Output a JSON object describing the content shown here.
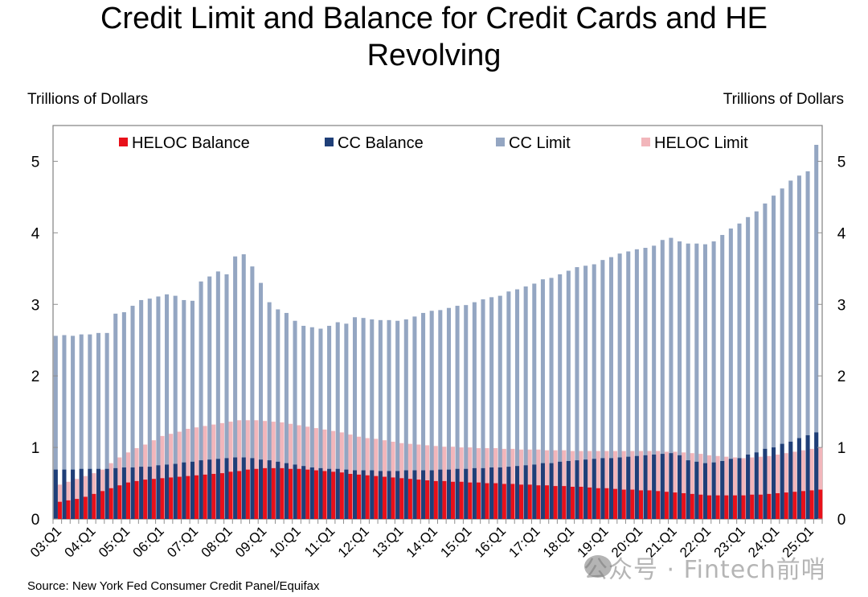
{
  "chart_data": {
    "type": "bar",
    "title": "Credit Limit and Balance for Credit Cards and HE Revolving",
    "title_lines": [
      "Credit Limit and Balance for Credit Cards and HE",
      "Revolving"
    ],
    "ylabel_left": "Trillions of Dollars",
    "ylabel_right": "Trillions of Dollars",
    "ylim": [
      0,
      5.5
    ],
    "yticks": [
      0,
      1,
      2,
      3,
      4,
      5
    ],
    "grid": false,
    "legend_placement": "top",
    "source": "Source: New York Fed Consumer Credit Panel/Equifax",
    "x_tick_labels": [
      "03:Q1",
      "04:Q1",
      "05:Q1",
      "06:Q1",
      "07:Q1",
      "08:Q1",
      "09:Q1",
      "10:Q1",
      "11:Q1",
      "12:Q1",
      "13:Q1",
      "14:Q1",
      "15:Q1",
      "16:Q1",
      "17:Q1",
      "18:Q1",
      "19:Q1",
      "20:Q1",
      "21:Q1",
      "22:Q1",
      "23:Q1",
      "24:Q1",
      "25:Q1"
    ],
    "x_start": "03:Q1",
    "x_end": "25:Q2",
    "colors": {
      "heloc_balance": "#e8101a",
      "cc_balance": "#1f3f78",
      "cc_limit": "#94a6c2",
      "heloc_limit": "#f2b6bb"
    },
    "series": [
      {
        "name": "HELOC Balance",
        "key": "heloc_balance",
        "values": [
          0.24,
          0.26,
          0.28,
          0.31,
          0.35,
          0.39,
          0.43,
          0.47,
          0.51,
          0.53,
          0.55,
          0.56,
          0.57,
          0.58,
          0.59,
          0.6,
          0.61,
          0.62,
          0.63,
          0.64,
          0.66,
          0.67,
          0.69,
          0.7,
          0.71,
          0.71,
          0.71,
          0.7,
          0.7,
          0.69,
          0.68,
          0.67,
          0.66,
          0.65,
          0.63,
          0.62,
          0.61,
          0.6,
          0.59,
          0.58,
          0.57,
          0.56,
          0.55,
          0.54,
          0.53,
          0.53,
          0.52,
          0.52,
          0.51,
          0.51,
          0.5,
          0.5,
          0.49,
          0.49,
          0.48,
          0.48,
          0.47,
          0.47,
          0.46,
          0.46,
          0.45,
          0.45,
          0.44,
          0.43,
          0.43,
          0.42,
          0.41,
          0.41,
          0.4,
          0.4,
          0.39,
          0.38,
          0.37,
          0.36,
          0.35,
          0.34,
          0.33,
          0.33,
          0.33,
          0.33,
          0.33,
          0.34,
          0.34,
          0.35,
          0.36,
          0.37,
          0.38,
          0.39,
          0.4,
          0.41
        ]
      },
      {
        "name": "CC Balance",
        "key": "cc_balance",
        "values": [
          0.69,
          0.69,
          0.69,
          0.7,
          0.7,
          0.7,
          0.7,
          0.71,
          0.72,
          0.72,
          0.73,
          0.73,
          0.75,
          0.76,
          0.77,
          0.79,
          0.8,
          0.82,
          0.83,
          0.84,
          0.85,
          0.86,
          0.86,
          0.85,
          0.83,
          0.82,
          0.8,
          0.78,
          0.76,
          0.74,
          0.72,
          0.71,
          0.7,
          0.7,
          0.69,
          0.68,
          0.68,
          0.68,
          0.67,
          0.67,
          0.67,
          0.68,
          0.68,
          0.68,
          0.68,
          0.69,
          0.69,
          0.7,
          0.7,
          0.71,
          0.71,
          0.72,
          0.72,
          0.73,
          0.74,
          0.75,
          0.76,
          0.78,
          0.78,
          0.8,
          0.81,
          0.82,
          0.83,
          0.84,
          0.85,
          0.85,
          0.86,
          0.87,
          0.88,
          0.89,
          0.9,
          0.91,
          0.92,
          0.89,
          0.82,
          0.8,
          0.78,
          0.79,
          0.81,
          0.84,
          0.85,
          0.9,
          0.93,
          0.98,
          1.0,
          1.05,
          1.08,
          1.13,
          1.17,
          1.21
        ]
      },
      {
        "name": "CC Limit",
        "key": "cc_limit",
        "values": [
          2.56,
          2.57,
          2.56,
          2.58,
          2.58,
          2.6,
          2.6,
          2.87,
          2.89,
          2.98,
          3.06,
          3.08,
          3.11,
          3.14,
          3.12,
          3.06,
          3.05,
          3.32,
          3.39,
          3.46,
          3.42,
          3.67,
          3.7,
          3.53,
          3.3,
          3.03,
          2.93,
          2.88,
          2.77,
          2.7,
          2.68,
          2.66,
          2.7,
          2.75,
          2.73,
          2.82,
          2.81,
          2.79,
          2.78,
          2.78,
          2.77,
          2.79,
          2.83,
          2.88,
          2.91,
          2.92,
          2.95,
          2.98,
          2.99,
          3.03,
          3.07,
          3.1,
          3.12,
          3.18,
          3.21,
          3.25,
          3.29,
          3.35,
          3.37,
          3.42,
          3.47,
          3.52,
          3.54,
          3.56,
          3.62,
          3.66,
          3.71,
          3.74,
          3.77,
          3.79,
          3.82,
          3.9,
          3.93,
          3.88,
          3.85,
          3.85,
          3.84,
          3.88,
          3.97,
          4.06,
          4.13,
          4.22,
          4.3,
          4.41,
          4.52,
          4.62,
          4.73,
          4.8,
          4.86,
          5.23
        ]
      },
      {
        "name": "HELOC Limit",
        "key": "heloc_limit",
        "values": [
          0.48,
          0.52,
          0.56,
          0.6,
          0.64,
          0.69,
          0.78,
          0.86,
          0.93,
          0.99,
          1.04,
          1.1,
          1.16,
          1.19,
          1.22,
          1.26,
          1.28,
          1.3,
          1.32,
          1.34,
          1.36,
          1.38,
          1.38,
          1.38,
          1.37,
          1.36,
          1.35,
          1.33,
          1.31,
          1.29,
          1.27,
          1.25,
          1.23,
          1.21,
          1.18,
          1.15,
          1.13,
          1.12,
          1.1,
          1.08,
          1.06,
          1.05,
          1.04,
          1.03,
          1.02,
          1.01,
          1.01,
          1.0,
          1.0,
          0.99,
          0.99,
          0.99,
          0.98,
          0.98,
          0.97,
          0.97,
          0.97,
          0.96,
          0.96,
          0.96,
          0.95,
          0.95,
          0.95,
          0.95,
          0.95,
          0.95,
          0.95,
          0.95,
          0.95,
          0.95,
          0.95,
          0.94,
          0.94,
          0.93,
          0.92,
          0.91,
          0.89,
          0.88,
          0.87,
          0.86,
          0.85,
          0.86,
          0.87,
          0.88,
          0.9,
          0.92,
          0.94,
          0.96,
          0.98,
          1.0
        ]
      }
    ]
  },
  "watermark": "公众号 · Fintech前哨"
}
